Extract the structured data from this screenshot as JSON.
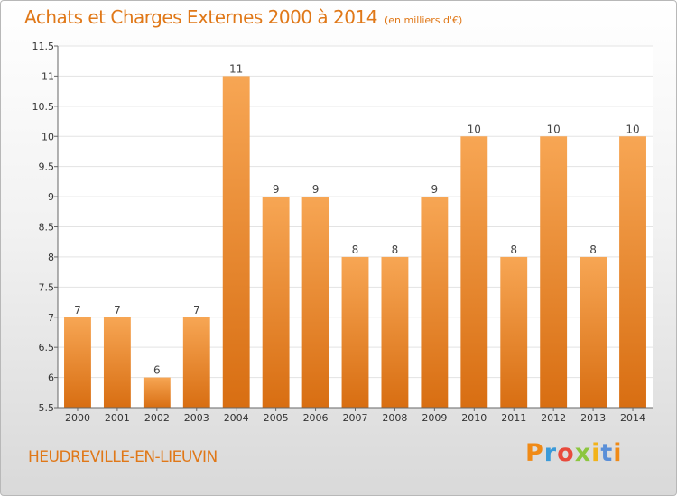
{
  "header": {
    "title": "Achats et Charges Externes 2000 à 2014",
    "subtitle": "(en milliers d'€)"
  },
  "footer": {
    "commune": "HEUDREVILLE-EN-LIEUVIN",
    "brand": [
      "P",
      "r",
      "o",
      "x",
      "i",
      "t",
      "i"
    ]
  },
  "chart_data": {
    "type": "bar",
    "title": "Achats et Charges Externes 2000 à 2014",
    "subtitle": "(en milliers d'€)",
    "xlabel": "",
    "ylabel": "",
    "categories": [
      "2000",
      "2001",
      "2002",
      "2003",
      "2004",
      "2005",
      "2006",
      "2007",
      "2008",
      "2009",
      "2010",
      "2011",
      "2012",
      "2013",
      "2014"
    ],
    "values": [
      7,
      7,
      6,
      7,
      11,
      9,
      9,
      8,
      8,
      9,
      10,
      8,
      10,
      8,
      10
    ],
    "data_labels": [
      "7",
      "7",
      "6",
      "7",
      "11",
      "9",
      "9",
      "8",
      "8",
      "9",
      "10",
      "8",
      "10",
      "8",
      "10"
    ],
    "ylim": [
      5.5,
      11.5
    ],
    "yticks": [
      5.5,
      6,
      6.5,
      7,
      7.5,
      8,
      8.5,
      9,
      9.5,
      10,
      10.5,
      11,
      11.5
    ],
    "ytick_labels": [
      "5.5",
      "6",
      "6.5",
      "7",
      "7.5",
      "8",
      "8.5",
      "9",
      "9.5",
      "10",
      "10.5",
      "11",
      "11.5"
    ],
    "grid": "horizontal",
    "colors": {
      "bar_top": "#f7a654",
      "bar_bottom": "#d86e12",
      "grid": "#e3e3e3",
      "axis": "#666666",
      "title": "#e07818"
    }
  }
}
